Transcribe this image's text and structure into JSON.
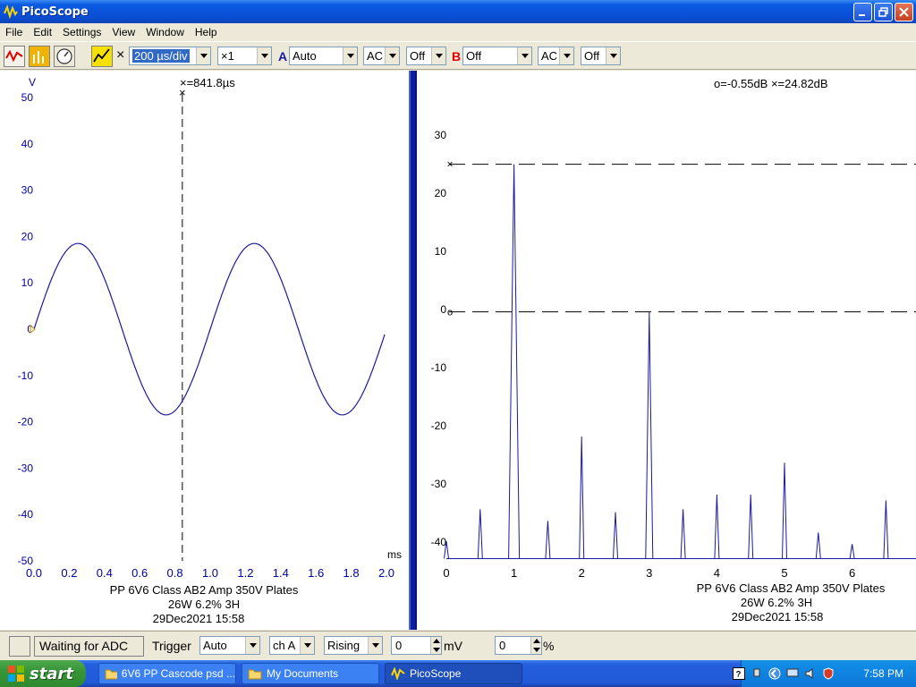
{
  "window": {
    "title": "PicoScope"
  },
  "menu": [
    "File",
    "Edit",
    "Settings",
    "View",
    "Window",
    "Help"
  ],
  "toolbar": {
    "timebase": "200 µs/div",
    "multiplier": "×1",
    "channel_a": {
      "label": "A",
      "range": "Auto",
      "coupling": "AC",
      "offset": "Off"
    },
    "channel_b": {
      "label": "B",
      "range": "Off",
      "coupling": "AC",
      "offset": "Off"
    },
    "x_label": "×"
  },
  "colors": {
    "trace": "#1a1aa0",
    "axis_text": "#0000a0",
    "ch_a": "#1a1aa0",
    "ch_b": "#e00000"
  },
  "scope_view": {
    "y_unit": "V",
    "x_unit": "ms",
    "cursor_readout": "×=841.8µs",
    "caption": [
      "PP 6V6 Class AB2 Amp 350V Plates",
      "26W 6.2% 3H",
      "29Dec2021  15:58"
    ]
  },
  "spectrum_view": {
    "cursor_readout": "o=-0.55dB  ×=24.82dB",
    "caption": [
      "PP 6V6 Class AB2 Amp 350V Plates",
      "26W 6.2% 3H",
      "29Dec2021  15:58"
    ]
  },
  "chart_data": [
    {
      "type": "line",
      "title": "",
      "xlabel": "ms",
      "ylabel": "V",
      "xlim": [
        0,
        2.0
      ],
      "ylim": [
        -50,
        50
      ],
      "x_ticks": [
        "0.0",
        "0.2",
        "0.4",
        "0.6",
        "0.8",
        "1.0",
        "1.2",
        "1.4",
        "1.6",
        "1.8",
        "2.0"
      ],
      "y_ticks": [
        "50",
        "40",
        "30",
        "20",
        "10",
        "0",
        "-10",
        "-20",
        "-30",
        "-40",
        "-50"
      ],
      "series": [
        {
          "amplitude": 18.5,
          "frequency_khz": 1.0,
          "x_start": 0,
          "x_end": 1.99
        }
      ],
      "cursor_x": 0.8418,
      "grid": false
    },
    {
      "type": "line",
      "title": "",
      "xlabel": "",
      "ylabel": "",
      "xlim": [
        0,
        6.7
      ],
      "ylim": [
        -43,
        36
      ],
      "x_ticks": [
        "0",
        "1",
        "2",
        "3",
        "4",
        "5",
        "6"
      ],
      "y_ticks": [
        "30",
        "20",
        "10",
        "0",
        "-10",
        "-20",
        "-30",
        "-40"
      ],
      "floor_db": -43,
      "peaks": [
        {
          "x": 0,
          "y": -40
        },
        {
          "x": 0.5,
          "y": -34.5
        },
        {
          "x": 1.0,
          "y": 24.82
        },
        {
          "x": 1.5,
          "y": -36.5
        },
        {
          "x": 2.0,
          "y": -22
        },
        {
          "x": 2.5,
          "y": -35
        },
        {
          "x": 3.0,
          "y": -0.55
        },
        {
          "x": 3.5,
          "y": -34.5
        },
        {
          "x": 4.0,
          "y": -32
        },
        {
          "x": 4.5,
          "y": -32
        },
        {
          "x": 5.0,
          "y": -26.5
        },
        {
          "x": 5.5,
          "y": -38.5
        },
        {
          "x": 6.0,
          "y": -40.5
        },
        {
          "x": 6.5,
          "y": -33
        }
      ],
      "cursor_o": -0.55,
      "cursor_x": 24.82,
      "grid": false
    }
  ],
  "status": {
    "message": "Waiting for ADC",
    "trigger_label": "Trigger",
    "trigger_mode": "Auto",
    "trigger_channel": "ch A",
    "trigger_edge": "Rising",
    "threshold": "0",
    "threshold_unit": "mV",
    "pre_trigger": "0",
    "pre_trigger_unit": "%"
  },
  "taskbar": {
    "start": "start",
    "tasks": [
      "6V6 PP Cascode psd ...",
      "My Documents",
      "PicoScope"
    ],
    "clock": "7:58 PM"
  }
}
